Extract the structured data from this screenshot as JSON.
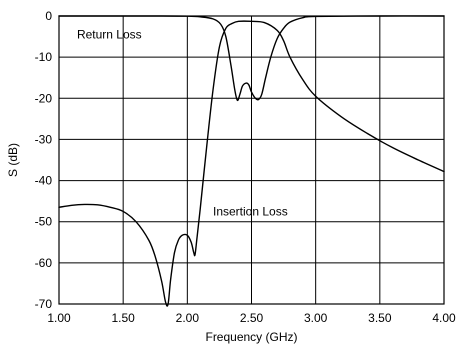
{
  "chart_data": {
    "type": "line",
    "xlabel": "Frequency (GHz)",
    "ylabel": "S (dB)",
    "xlim": [
      1.0,
      4.0
    ],
    "ylim": [
      -70,
      0
    ],
    "xticks": [
      1.0,
      1.5,
      2.0,
      2.5,
      3.0,
      3.5,
      4.0
    ],
    "xtick_labels": [
      "1.00",
      "1.50",
      "2.00",
      "2.50",
      "3.00",
      "3.50",
      "4.00"
    ],
    "yticks": [
      0,
      -10,
      -20,
      -30,
      -40,
      -50,
      -60,
      -70
    ],
    "ytick_labels": [
      "0",
      "-10",
      "-20",
      "-30",
      "-40",
      "-50",
      "-60",
      "-70"
    ],
    "grid": true,
    "annotations": [
      {
        "text": "Return Loss",
        "x": 1.14,
        "y": -4.5
      },
      {
        "text": "Insertion Loss",
        "x": 2.2,
        "y": -47.5
      }
    ],
    "series": [
      {
        "id": "return-loss",
        "x": [
          1.0,
          1.5,
          1.8,
          2.0,
          2.1,
          2.2,
          2.26,
          2.3,
          2.34,
          2.37,
          2.39,
          2.41,
          2.43,
          2.46,
          2.48,
          2.5,
          2.53,
          2.555,
          2.58,
          2.61,
          2.65,
          2.7,
          2.75,
          2.8,
          2.9,
          3.0,
          3.5,
          4.0
        ],
        "y": [
          0,
          0,
          0,
          -0.05,
          -0.2,
          -0.7,
          -2,
          -5,
          -12,
          -18,
          -20.5,
          -19,
          -17,
          -16.3,
          -16.8,
          -18.5,
          -20,
          -20.3,
          -19,
          -15,
          -10,
          -5.5,
          -3,
          -1.5,
          -0.4,
          -0.1,
          0,
          0
        ]
      },
      {
        "id": "insertion-loss",
        "x": [
          1.0,
          1.1,
          1.2,
          1.3,
          1.4,
          1.5,
          1.6,
          1.7,
          1.75,
          1.8,
          1.83,
          1.85,
          1.87,
          1.9,
          1.93,
          1.96,
          2.0,
          2.03,
          2.05,
          2.06,
          2.075,
          2.1,
          2.15,
          2.2,
          2.25,
          2.3,
          2.35,
          2.4,
          2.5,
          2.6,
          2.7,
          2.75,
          2.8,
          2.9,
          3.0,
          3.2,
          3.4,
          3.6,
          3.8,
          4.0
        ],
        "y": [
          -46.5,
          -46,
          -45.8,
          -45.9,
          -46.5,
          -47.5,
          -50,
          -54.5,
          -58.5,
          -64.5,
          -69.5,
          -70,
          -64,
          -57.5,
          -54.5,
          -53.3,
          -53.3,
          -55,
          -57.5,
          -58,
          -54,
          -47,
          -32,
          -18,
          -7.5,
          -3,
          -1.8,
          -1.3,
          -1.3,
          -1.6,
          -3.5,
          -6,
          -10,
          -15.5,
          -19.5,
          -24.5,
          -28.5,
          -32,
          -35,
          -37.8
        ]
      }
    ]
  }
}
